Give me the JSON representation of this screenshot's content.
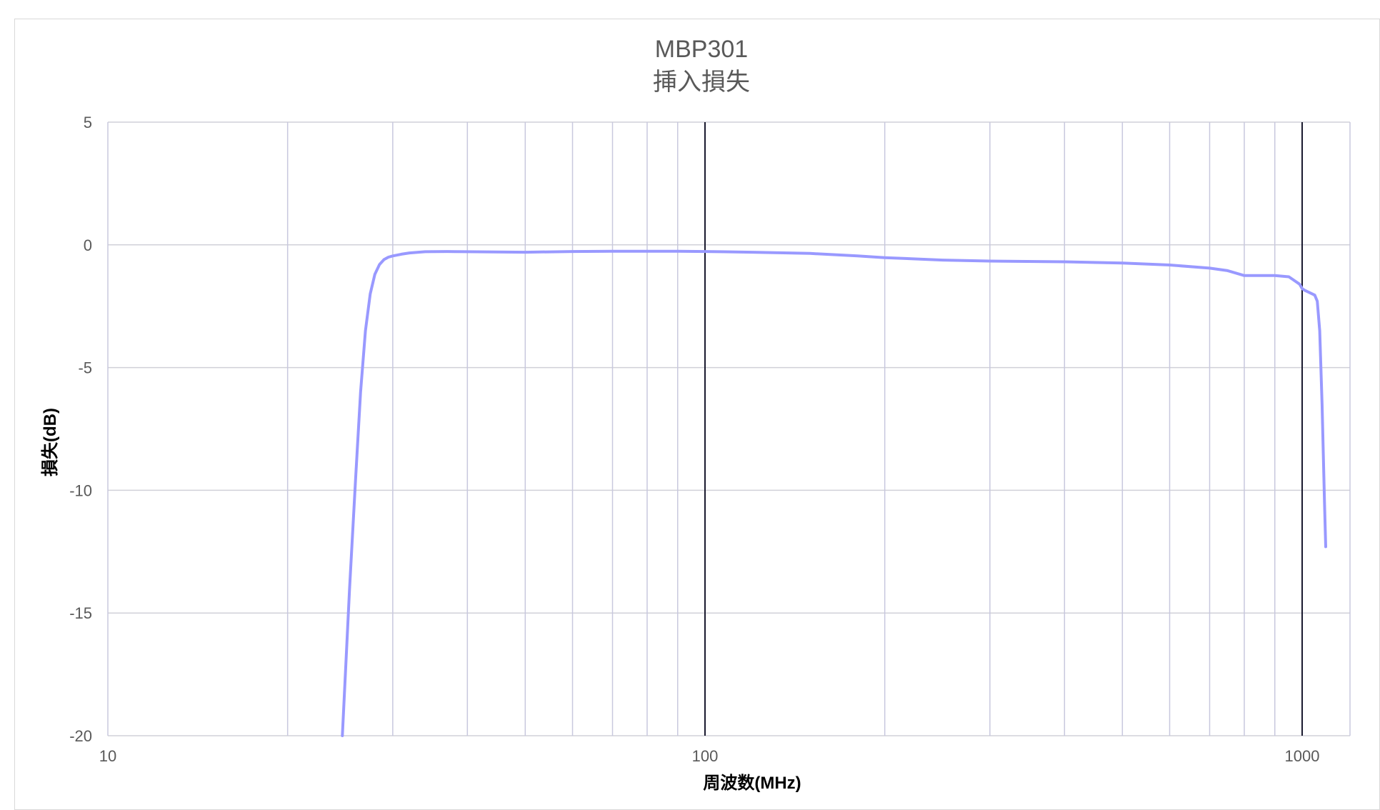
{
  "chart_data": {
    "type": "line",
    "title": "MBP301",
    "subtitle": "挿入損失",
    "xlabel": "周波数(MHz)",
    "ylabel": "損失(dB)",
    "x_scale": "log",
    "xlim": [
      10,
      1100
    ],
    "ylim": [
      -20,
      5
    ],
    "x_ticks": [
      10,
      100,
      1000
    ],
    "x_tick_labels": [
      "10",
      "100",
      "1000"
    ],
    "y_ticks": [
      5,
      0,
      -5,
      -10,
      -15,
      -20
    ],
    "y_tick_labels": [
      "5",
      "0",
      "-5",
      "-10",
      "-15",
      "-20"
    ],
    "grid": true,
    "legend": "none",
    "series": [
      {
        "color": "#9999ff",
        "x": [
          24.7,
          25.4,
          26.0,
          26.5,
          27.0,
          27.5,
          28.0,
          28.5,
          29.0,
          29.5,
          30.0,
          31.0,
          32.0,
          34.0,
          37.0,
          40.0,
          50.0,
          60.0,
          70.0,
          80.0,
          90.0,
          100.0,
          120.0,
          150.0,
          180.0,
          200.0,
          250.0,
          300.0,
          400.0,
          500.0,
          600.0,
          700.0,
          750.0,
          800.0,
          900.0,
          950.0,
          970.0,
          990.0,
          1000.0,
          1010.0,
          1030.0,
          1050.0,
          1060.0,
          1070.0,
          1080.0,
          1090.0,
          1095.0
        ],
        "values": [
          -20.0,
          -14.0,
          -9.5,
          -6.0,
          -3.5,
          -2.0,
          -1.2,
          -0.8,
          -0.6,
          -0.5,
          -0.45,
          -0.38,
          -0.33,
          -0.28,
          -0.27,
          -0.28,
          -0.3,
          -0.27,
          -0.26,
          -0.26,
          -0.26,
          -0.27,
          -0.3,
          -0.35,
          -0.45,
          -0.52,
          -0.62,
          -0.66,
          -0.69,
          -0.74,
          -0.82,
          -0.95,
          -1.05,
          -1.25,
          -1.25,
          -1.3,
          -1.45,
          -1.6,
          -1.78,
          -1.85,
          -1.95,
          -2.05,
          -2.3,
          -3.5,
          -6.5,
          -10.5,
          -12.3
        ]
      }
    ]
  }
}
